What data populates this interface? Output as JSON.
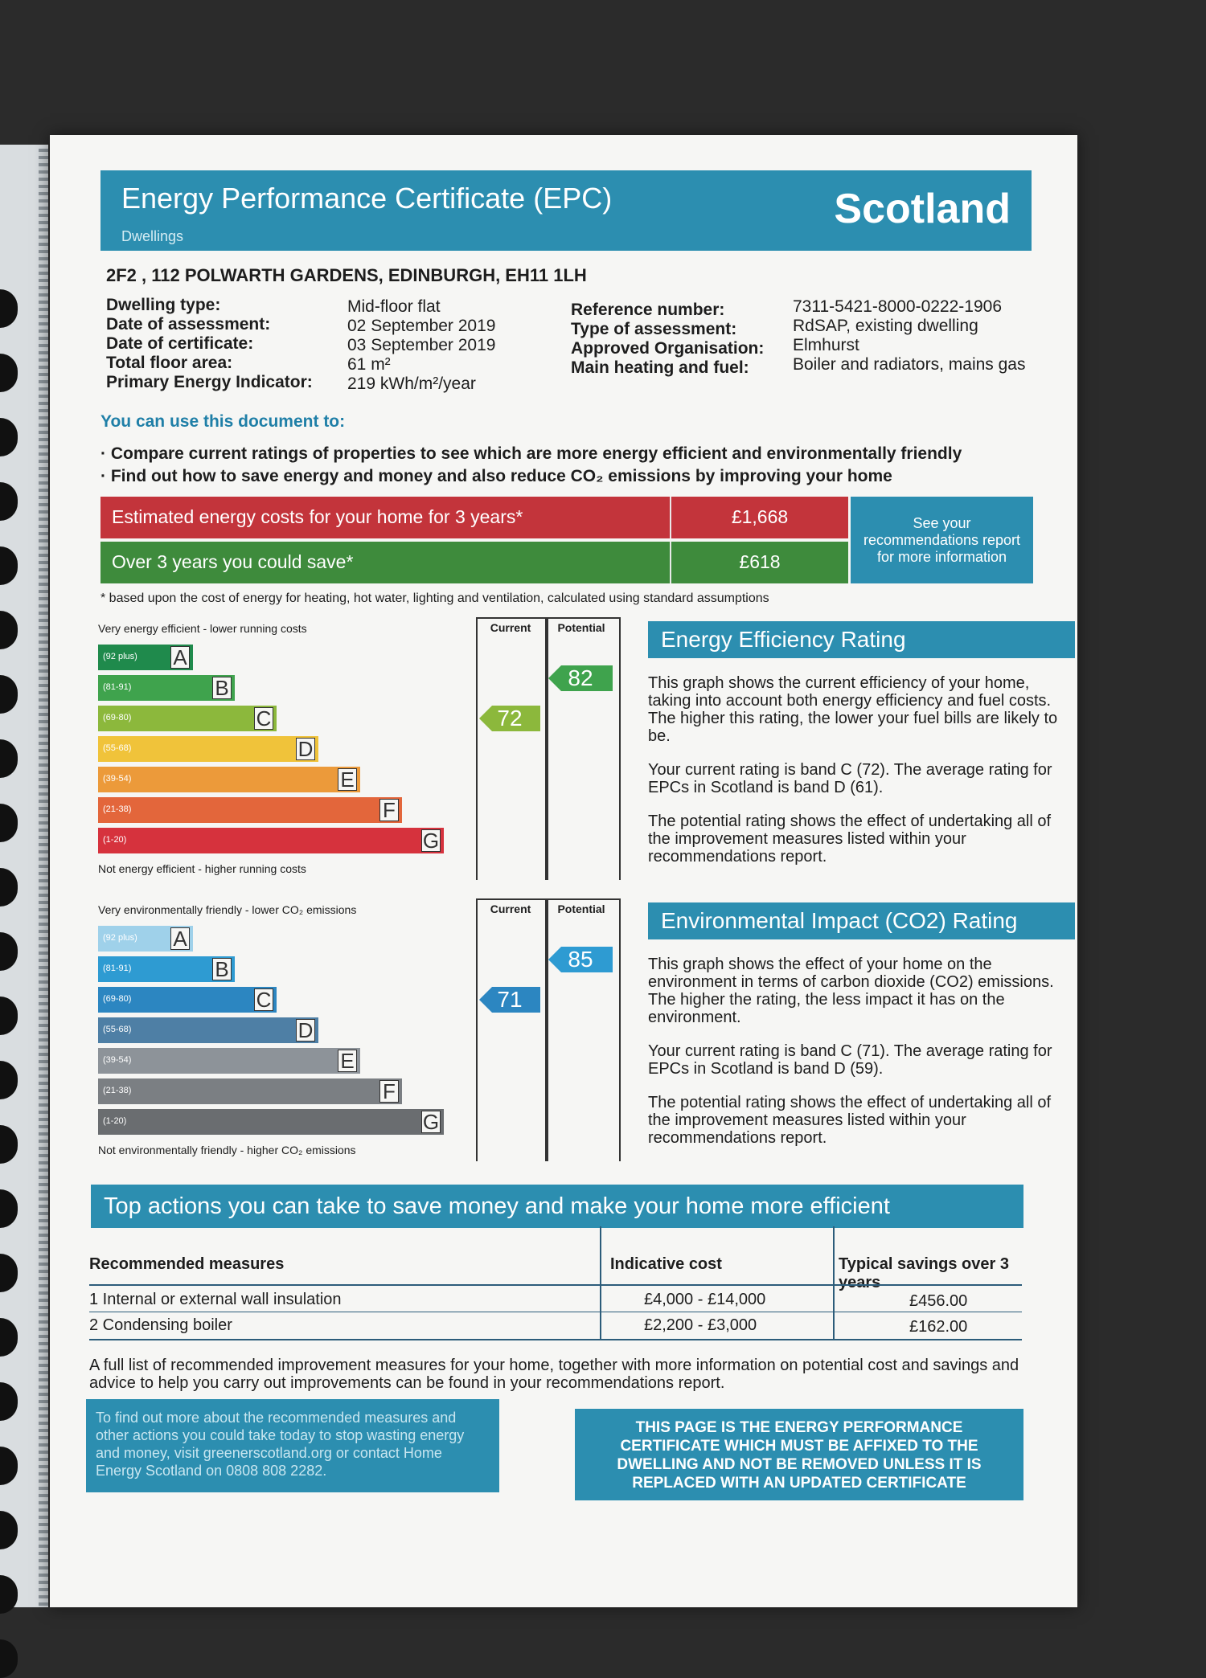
{
  "header": {
    "title": "Energy Performance Certificate (EPC)",
    "subtitle": "Dwellings",
    "region": "Scotland"
  },
  "address": "2F2 , 112 POLWARTH GARDENS, EDINBURGH, EH11 1LH",
  "details_left": [
    {
      "label": "Dwelling type:",
      "value": "Mid-floor flat"
    },
    {
      "label": "Date of assessment:",
      "value": "02 September 2019"
    },
    {
      "label": "Date of certificate:",
      "value": "03 September 2019"
    },
    {
      "label": "Total floor area:",
      "value": "61 m²"
    },
    {
      "label": "Primary Energy Indicator:",
      "value": "219 kWh/m²/year"
    }
  ],
  "details_right": [
    {
      "label": "Reference number:",
      "value": "7311-5421-8000-0222-1906"
    },
    {
      "label": "Type of assessment:",
      "value": "RdSAP, existing dwelling"
    },
    {
      "label": "Approved Organisation:",
      "value": "Elmhurst"
    },
    {
      "label": "Main heating and fuel:",
      "value": "Boiler and radiators, mains gas"
    }
  ],
  "use": {
    "heading": "You can use this document to:",
    "items": [
      "Compare current ratings of properties to see which are more energy efficient and environmentally friendly",
      "Find out how to save energy and money and also reduce CO₂ emissions by improving your home"
    ]
  },
  "costs": {
    "estimated_label": "Estimated energy costs for your home for 3 years*",
    "estimated_value": "£1,668",
    "save_label": "Over 3 years you could save*",
    "save_value": "£618",
    "note": "See your recommendations report for more information",
    "footnote": "* based upon the cost of energy for heating, hot water, lighting and ventilation, calculated using standard assumptions"
  },
  "energy_chart": {
    "top_label": "Very energy efficient - lower running costs",
    "bottom_label": "Not energy efficient - higher running costs",
    "col_current": "Current",
    "col_potential": "Potential",
    "current": 72,
    "potential": 82,
    "bands": [
      {
        "range": "(92 plus)",
        "letter": "A",
        "color": "#1f8a4c"
      },
      {
        "range": "(81-91)",
        "letter": "B",
        "color": "#3fa34d"
      },
      {
        "range": "(69-80)",
        "letter": "C",
        "color": "#8cb83c"
      },
      {
        "range": "(55-68)",
        "letter": "D",
        "color": "#f0c33a"
      },
      {
        "range": "(39-54)",
        "letter": "E",
        "color": "#ec9a3a"
      },
      {
        "range": "(21-38)",
        "letter": "F",
        "color": "#e3663b"
      },
      {
        "range": "(1-20)",
        "letter": "G",
        "color": "#d6323d"
      }
    ]
  },
  "env_chart": {
    "top_label": "Very environmentally friendly - lower CO₂ emissions",
    "bottom_label": "Not environmentally friendly - higher CO₂ emissions",
    "col_current": "Current",
    "col_potential": "Potential",
    "current": 71,
    "potential": 85,
    "bands": [
      {
        "range": "(92 plus)",
        "letter": "A",
        "color": "#9fd1ea"
      },
      {
        "range": "(81-91)",
        "letter": "B",
        "color": "#2e9bd2"
      },
      {
        "range": "(69-80)",
        "letter": "C",
        "color": "#2c86c1"
      },
      {
        "range": "(55-68)",
        "letter": "D",
        "color": "#4e7fa5"
      },
      {
        "range": "(39-54)",
        "letter": "E",
        "color": "#8d9399"
      },
      {
        "range": "(21-38)",
        "letter": "F",
        "color": "#7b7f83"
      },
      {
        "range": "(1-20)",
        "letter": "G",
        "color": "#6a6d70"
      }
    ]
  },
  "energy_panel": {
    "title": "Energy Efficiency Rating",
    "p1": "This graph shows the current efficiency of your home, taking into account both energy efficiency and fuel costs. The higher this rating, the lower your fuel bills are likely to be.",
    "p2": "Your current rating is band C (72). The average rating for EPCs in Scotland is band D (61).",
    "p3": "The potential rating shows the effect of undertaking all of the improvement measures listed within your recommendations report."
  },
  "env_panel": {
    "title": "Environmental Impact (CO2) Rating",
    "p1": "This graph shows the effect of your home on the environment in terms of carbon dioxide (CO2) emissions. The higher the rating, the less impact it has on the environment.",
    "p2": "Your current rating is band C (71). The average rating for EPCs in Scotland is band D (59).",
    "p3": "The potential rating shows the effect of undertaking all of the improvement measures listed within your recommendations report."
  },
  "actions": {
    "title": "Top actions you can take to save money and make your home more efficient",
    "col_measures": "Recommended measures",
    "col_cost": "Indicative cost",
    "col_savings": "Typical savings over 3 years",
    "rows": [
      {
        "measure": "1 Internal or external wall insulation",
        "cost": "£4,000 - £14,000",
        "savings": "£456.00"
      },
      {
        "measure": "2 Condensing boiler",
        "cost": "£2,200 - £3,000",
        "savings": "£162.00"
      }
    ],
    "full_list": "A full list of recommended improvement measures for your home, together with more information on potential cost and savings and advice to help you carry out improvements can be found in your recommendations report."
  },
  "footer": {
    "left": "To find out more about the recommended measures and other actions you could take today to stop wasting energy and money, visit greenerscotland.org or contact Home Energy Scotland on 0808 808 2282.",
    "right": "THIS PAGE IS THE ENERGY PERFORMANCE CERTIFICATE WHICH MUST BE AFFIXED TO THE DWELLING AND NOT BE REMOVED UNLESS IT IS REPLACED WITH AN UPDATED CERTIFICATE"
  }
}
